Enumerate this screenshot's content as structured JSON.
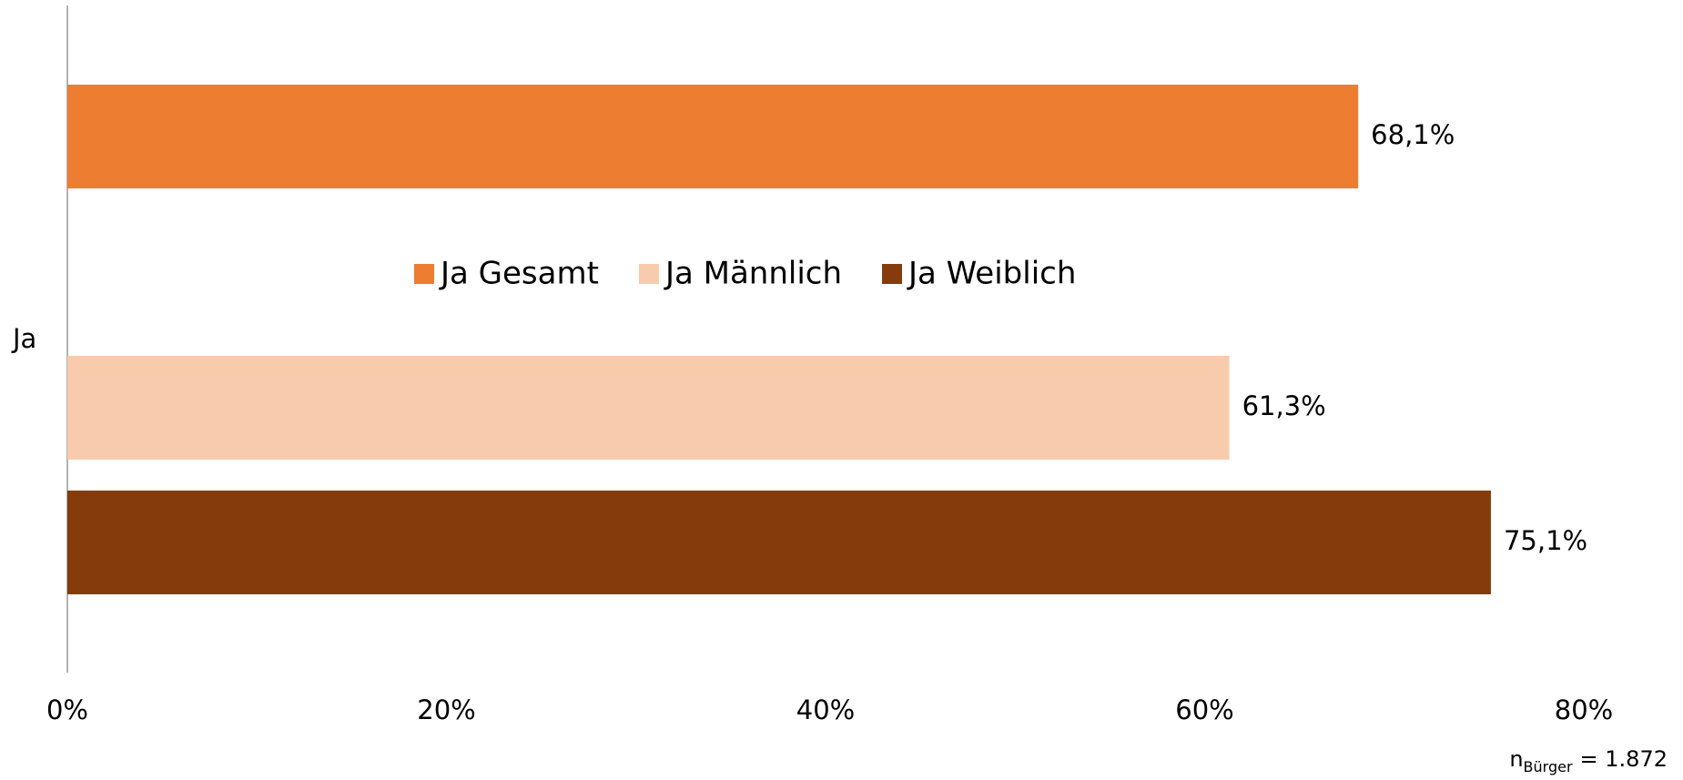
{
  "chart_data": {
    "type": "bar",
    "orientation": "horizontal",
    "categories": [
      "Ja"
    ],
    "series": [
      {
        "name": "Ja Gesamt",
        "color": "#ed7d31",
        "values": [
          68.1
        ],
        "value_labels": [
          "68,1%"
        ]
      },
      {
        "name": "Ja Männlich",
        "color": "#f8cbad",
        "values": [
          61.3
        ],
        "value_labels": [
          "61,3%"
        ]
      },
      {
        "name": "Ja Weiblich",
        "color": "#843c0c",
        "values": [
          75.1
        ],
        "value_labels": [
          "75,1%"
        ]
      }
    ],
    "xlim": [
      0,
      80
    ],
    "xticks": [
      {
        "value": 0,
        "label": "0%"
      },
      {
        "value": 20,
        "label": "20%"
      },
      {
        "value": 40,
        "label": "40%"
      },
      {
        "value": 60,
        "label": "60%"
      },
      {
        "value": 80,
        "label": "80%"
      }
    ],
    "legend": "center",
    "note": {
      "main": "n",
      "sub": "Bürger",
      "rest": "= 1.872"
    }
  }
}
